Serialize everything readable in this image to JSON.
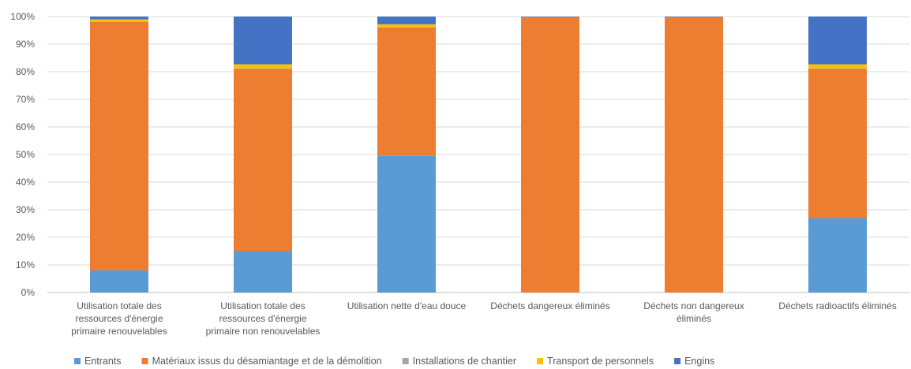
{
  "chart_data": {
    "type": "bar",
    "stacked": true,
    "percent": true,
    "categories": [
      [
        "Utilisation totale des",
        "ressources d'énergie",
        "primaire renouvelables"
      ],
      [
        "Utilisation totale des",
        "ressources d'énergie",
        "primaire non renouvelables"
      ],
      [
        "Utilisation nette d'eau douce"
      ],
      [
        "Déchets dangereux éliminés"
      ],
      [
        "Déchets non dangereux",
        "éliminés"
      ],
      [
        "Déchets radioactifs éliminés"
      ]
    ],
    "series": [
      {
        "name": "Entrants",
        "color": "#5B9BD5",
        "values": [
          8,
          15,
          49.5,
          0,
          0,
          27
        ]
      },
      {
        "name": "Matériaux issus du désamiantage et de la démolition",
        "color": "#ED7D31",
        "values": [
          90,
          66,
          46.5,
          99.8,
          99.8,
          54
        ]
      },
      {
        "name": "Installations de chantier",
        "color": "#A5A5A5",
        "values": [
          0.2,
          0.2,
          0.2,
          0,
          0,
          0.2
        ]
      },
      {
        "name": "Transport de personnels",
        "color": "#FFC000",
        "values": [
          0.8,
          1.5,
          1,
          0,
          0,
          1.5
        ]
      },
      {
        "name": "Engins",
        "color": "#4472C4",
        "values": [
          1,
          17.3,
          2.8,
          0.2,
          0.2,
          17.3
        ]
      }
    ],
    "y_ticks": [
      "0%",
      "10%",
      "20%",
      "30%",
      "40%",
      "50%",
      "60%",
      "70%",
      "80%",
      "90%",
      "100%"
    ],
    "ylim": [
      0,
      100
    ],
    "grid": true,
    "legend_position": "bottom"
  }
}
